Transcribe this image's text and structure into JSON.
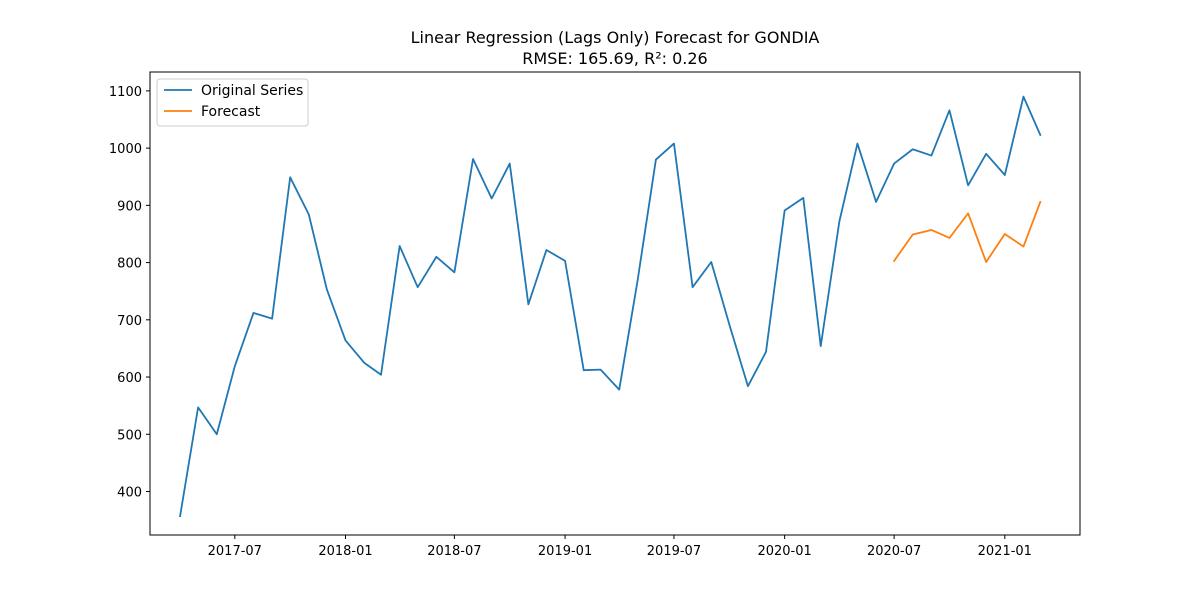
{
  "chart_data": {
    "type": "line",
    "title": "Linear Regression (Lags Only) Forecast for GONDIA",
    "subtitle": "RMSE: 165.69, R²: 0.26",
    "xlabel": "",
    "ylabel": "",
    "x_axis": "date",
    "xlim": [
      "2017-02-10",
      "2021-05-06"
    ],
    "ylim": [
      324,
      1133
    ],
    "x_ticks": [
      "2017-07",
      "2018-01",
      "2018-07",
      "2019-01",
      "2019-07",
      "2020-01",
      "2020-07",
      "2021-01"
    ],
    "y_ticks": [
      400,
      500,
      600,
      700,
      800,
      900,
      1000,
      1100
    ],
    "grid": false,
    "legend_position": "top-left",
    "series": [
      {
        "name": "Original Series",
        "color": "#1f77b4",
        "x": [
          "2017-04",
          "2017-05",
          "2017-06",
          "2017-07",
          "2017-08",
          "2017-09",
          "2017-10",
          "2017-11",
          "2017-12",
          "2018-01",
          "2018-02",
          "2018-03",
          "2018-04",
          "2018-05",
          "2018-06",
          "2018-07",
          "2018-08",
          "2018-09",
          "2018-10",
          "2018-11",
          "2018-12",
          "2019-01",
          "2019-02",
          "2019-03",
          "2019-04",
          "2019-05",
          "2019-06",
          "2019-07",
          "2019-08",
          "2019-09",
          "2019-10",
          "2019-11",
          "2019-12",
          "2020-01",
          "2020-02",
          "2020-03",
          "2020-04",
          "2020-05",
          "2020-06",
          "2020-07",
          "2020-08",
          "2020-09",
          "2020-10",
          "2020-11",
          "2020-12",
          "2021-01",
          "2021-02",
          "2021-03"
        ],
        "values": [
          357,
          547,
          500,
          619,
          712,
          702,
          949,
          884,
          753,
          664,
          625,
          604,
          829,
          757,
          810,
          783,
          981,
          912,
          973,
          727,
          822,
          803,
          612,
          613,
          578,
          765,
          980,
          1008,
          757,
          801,
          692,
          584,
          644,
          891,
          913,
          654,
          872,
          1008,
          906,
          973,
          998,
          987,
          1066,
          935,
          990,
          953,
          1090,
          1023
        ]
      },
      {
        "name": "Forecast",
        "color": "#ff7f0e",
        "x": [
          "2020-07",
          "2020-08",
          "2020-09",
          "2020-10",
          "2020-11",
          "2020-12",
          "2021-01",
          "2021-02",
          "2021-03"
        ],
        "values": [
          803,
          849,
          857,
          843,
          886,
          801,
          850,
          828,
          906
        ]
      }
    ]
  }
}
